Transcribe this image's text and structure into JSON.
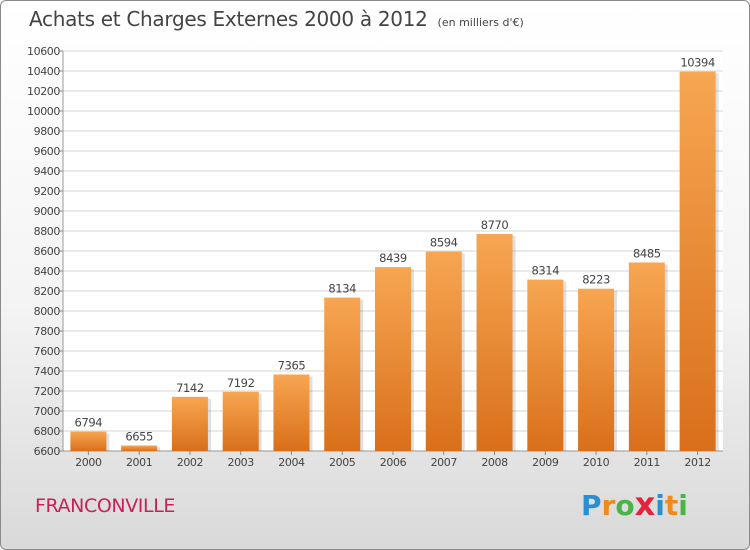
{
  "title": "Achats et Charges Externes 2000 à 2012",
  "subtitle": "(en milliers d'€)",
  "city": "FRANCONVILLE",
  "logo": {
    "text": "Proxiti",
    "letters": [
      {
        "char": "P",
        "color": "#2a8fd0"
      },
      {
        "char": "r",
        "color": "#f08a1c"
      },
      {
        "char": "o",
        "color": "#4bb347"
      },
      {
        "char": "x",
        "color": "#e2243c"
      },
      {
        "char": "i",
        "color": "#2a8fd0"
      },
      {
        "char": "t",
        "color": "#f08a1c"
      },
      {
        "char": "i",
        "color": "#4bb347"
      }
    ]
  },
  "colors": {
    "bar_top": "#f7a652",
    "bar_bottom": "#d96f1a",
    "grid": "#d6d6d6",
    "text": "#444444"
  },
  "chart_data": {
    "type": "bar",
    "title": "Achats et Charges Externes 2000 à 2012",
    "subtitle": "(en milliers d'€)",
    "categories": [
      "2000",
      "2001",
      "2002",
      "2003",
      "2004",
      "2005",
      "2006",
      "2007",
      "2008",
      "2009",
      "2010",
      "2011",
      "2012"
    ],
    "values": [
      6794,
      6655,
      7142,
      7192,
      7365,
      8134,
      8439,
      8594,
      8770,
      8314,
      8223,
      8485,
      10394
    ],
    "ylim": [
      6600,
      10600
    ],
    "yticks": [
      6600,
      6800,
      7000,
      7200,
      7400,
      7600,
      7800,
      8000,
      8200,
      8400,
      8600,
      8800,
      9000,
      9200,
      9400,
      9600,
      9800,
      10000,
      10200,
      10400,
      10600
    ],
    "grid": true,
    "xlabel": "",
    "ylabel": ""
  }
}
